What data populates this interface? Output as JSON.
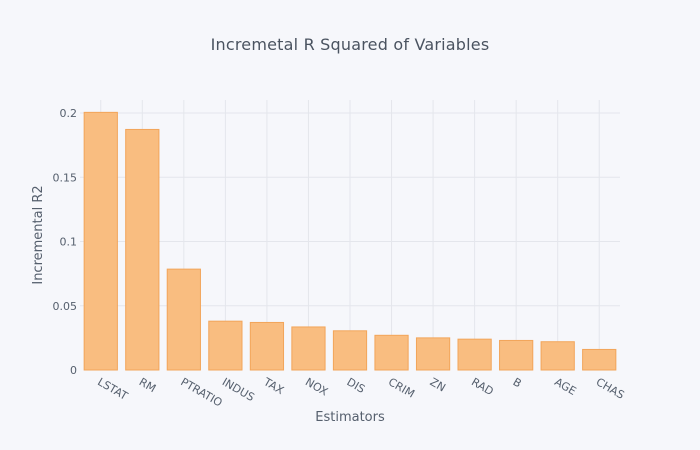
{
  "chart_data": {
    "type": "bar",
    "title": "Incremetal  R Squared of  Variables",
    "xlabel": "Estimators",
    "ylabel": "Incremental R2",
    "categories": [
      "LSTAT",
      "RM",
      "PTRATIO",
      "INDUS",
      "TAX",
      "NOX",
      "DIS",
      "CRIM",
      "ZN",
      "RAD",
      "B",
      "AGE",
      "CHAS"
    ],
    "values": [
      0.2005,
      0.1872,
      0.0785,
      0.038,
      0.037,
      0.0335,
      0.0305,
      0.027,
      0.025,
      0.024,
      0.023,
      0.022,
      0.016
    ],
    "ylim": [
      0,
      0.2
    ],
    "yticks": [
      0,
      0.05,
      0.1,
      0.15,
      0.2
    ],
    "ytick_labels": [
      "0",
      "0.05",
      "0.1",
      "0.15",
      "0.2"
    ],
    "grid": true,
    "colors": {
      "bar_fill": "#f9bd80",
      "bar_stroke": "#f2a55a",
      "background": "#f6f7fb"
    }
  }
}
